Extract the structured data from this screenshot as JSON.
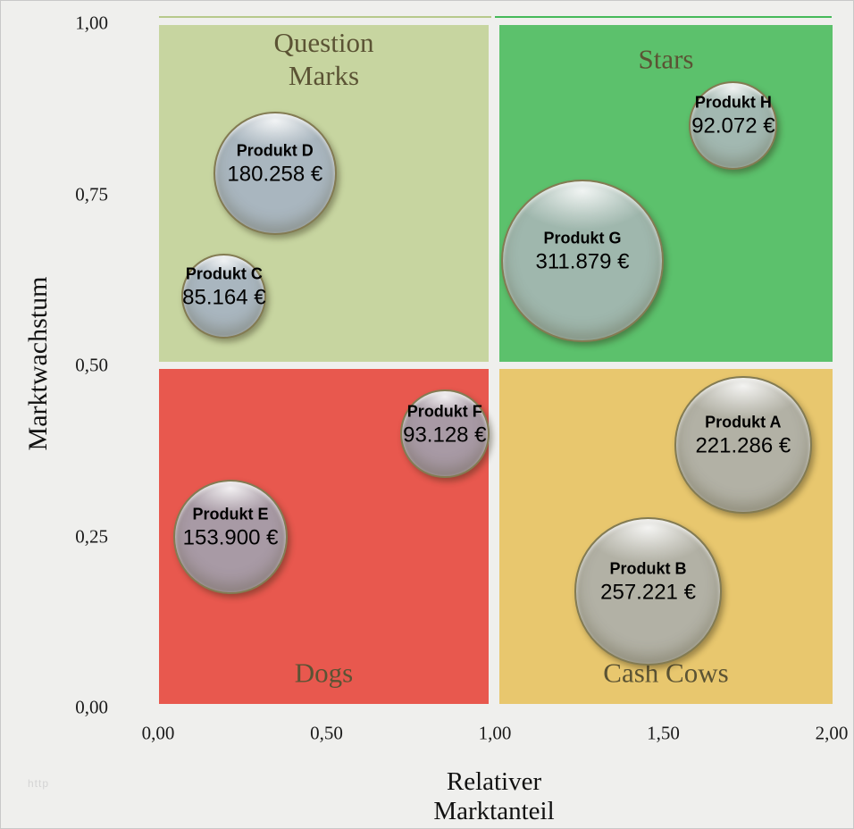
{
  "watermark": "http",
  "chart_data": {
    "type": "scatter",
    "subtype": "bubble-bcg-matrix",
    "title": "",
    "xlabel": "Relativer Marktanteil",
    "xlabel_lines": [
      "Relativer",
      "Marktanteil"
    ],
    "ylabel": "Marktwachstum",
    "xlim": [
      0,
      2
    ],
    "ylim": [
      0,
      1
    ],
    "grid": false,
    "legend": false,
    "x_ticks": [
      {
        "v": 0.0,
        "label": "0,00"
      },
      {
        "v": 0.5,
        "label": "0,50"
      },
      {
        "v": 1.0,
        "label": "1,00"
      },
      {
        "v": 1.5,
        "label": "1,50"
      },
      {
        "v": 2.0,
        "label": "2,00"
      }
    ],
    "y_ticks": [
      {
        "v": 1.0,
        "label": "1,00"
      },
      {
        "v": 0.75,
        "label": "0,75"
      },
      {
        "v": 0.5,
        "label": "0,50"
      },
      {
        "v": 0.25,
        "label": "0,25"
      },
      {
        "v": 0.0,
        "label": "0,00"
      }
    ],
    "quadrant_title_color": "#5b5334",
    "quadrants": [
      {
        "id": "question-marks",
        "position": "top-left",
        "label_lines": [
          "Question",
          "Marks"
        ],
        "label_pos": "top",
        "color": "#c7d5a0"
      },
      {
        "id": "stars",
        "position": "top-right",
        "label_lines": [
          "Stars"
        ],
        "label_pos": "top",
        "color": "#5cc16c"
      },
      {
        "id": "dogs",
        "position": "bottom-left",
        "label_lines": [
          "Dogs"
        ],
        "label_pos": "bottom",
        "color": "#e8584e"
      },
      {
        "id": "cash-cows",
        "position": "bottom-right",
        "label_lines": [
          "Cash Cows"
        ],
        "label_pos": "bottom",
        "color": "#e8c76e"
      }
    ],
    "top_border": [
      {
        "side": "left",
        "color": "#b7c98c"
      },
      {
        "side": "right",
        "color": "#45b95a"
      }
    ],
    "series": [
      {
        "name": "Produkt A",
        "value_eur": 221286,
        "value_label": "221.286 €",
        "x": 1.737,
        "y": 0.38,
        "color": "#b2b1a5"
      },
      {
        "name": "Produkt B",
        "value_eur": 257221,
        "value_label": "257.221 €",
        "x": 1.455,
        "y": 0.166,
        "color": "#b2b1a5"
      },
      {
        "name": "Produkt C",
        "value_eur": 85164,
        "value_label": "85.164 €",
        "x": 0.196,
        "y": 0.597,
        "color": "#a9b6bf"
      },
      {
        "name": "Produkt D",
        "value_eur": 180258,
        "value_label": "180.258 €",
        "x": 0.347,
        "y": 0.777,
        "color": "#a9b6bf"
      },
      {
        "name": "Produkt E",
        "value_eur": 153900,
        "value_label": "153.900 €",
        "x": 0.215,
        "y": 0.245,
        "color": "#a89aa5"
      },
      {
        "name": "Produkt F",
        "value_eur": 93128,
        "value_label": "93.128 €",
        "x": 0.851,
        "y": 0.396,
        "color": "#a89aa5"
      },
      {
        "name": "Produkt G",
        "value_eur": 311879,
        "value_label": "311.879 €",
        "x": 1.26,
        "y": 0.649,
        "color": "#9fb7ad"
      },
      {
        "name": "Produkt H",
        "value_eur": 92072,
        "value_label": "92.072 €",
        "x": 1.708,
        "y": 0.847,
        "color": "#a2b8b1"
      }
    ]
  }
}
